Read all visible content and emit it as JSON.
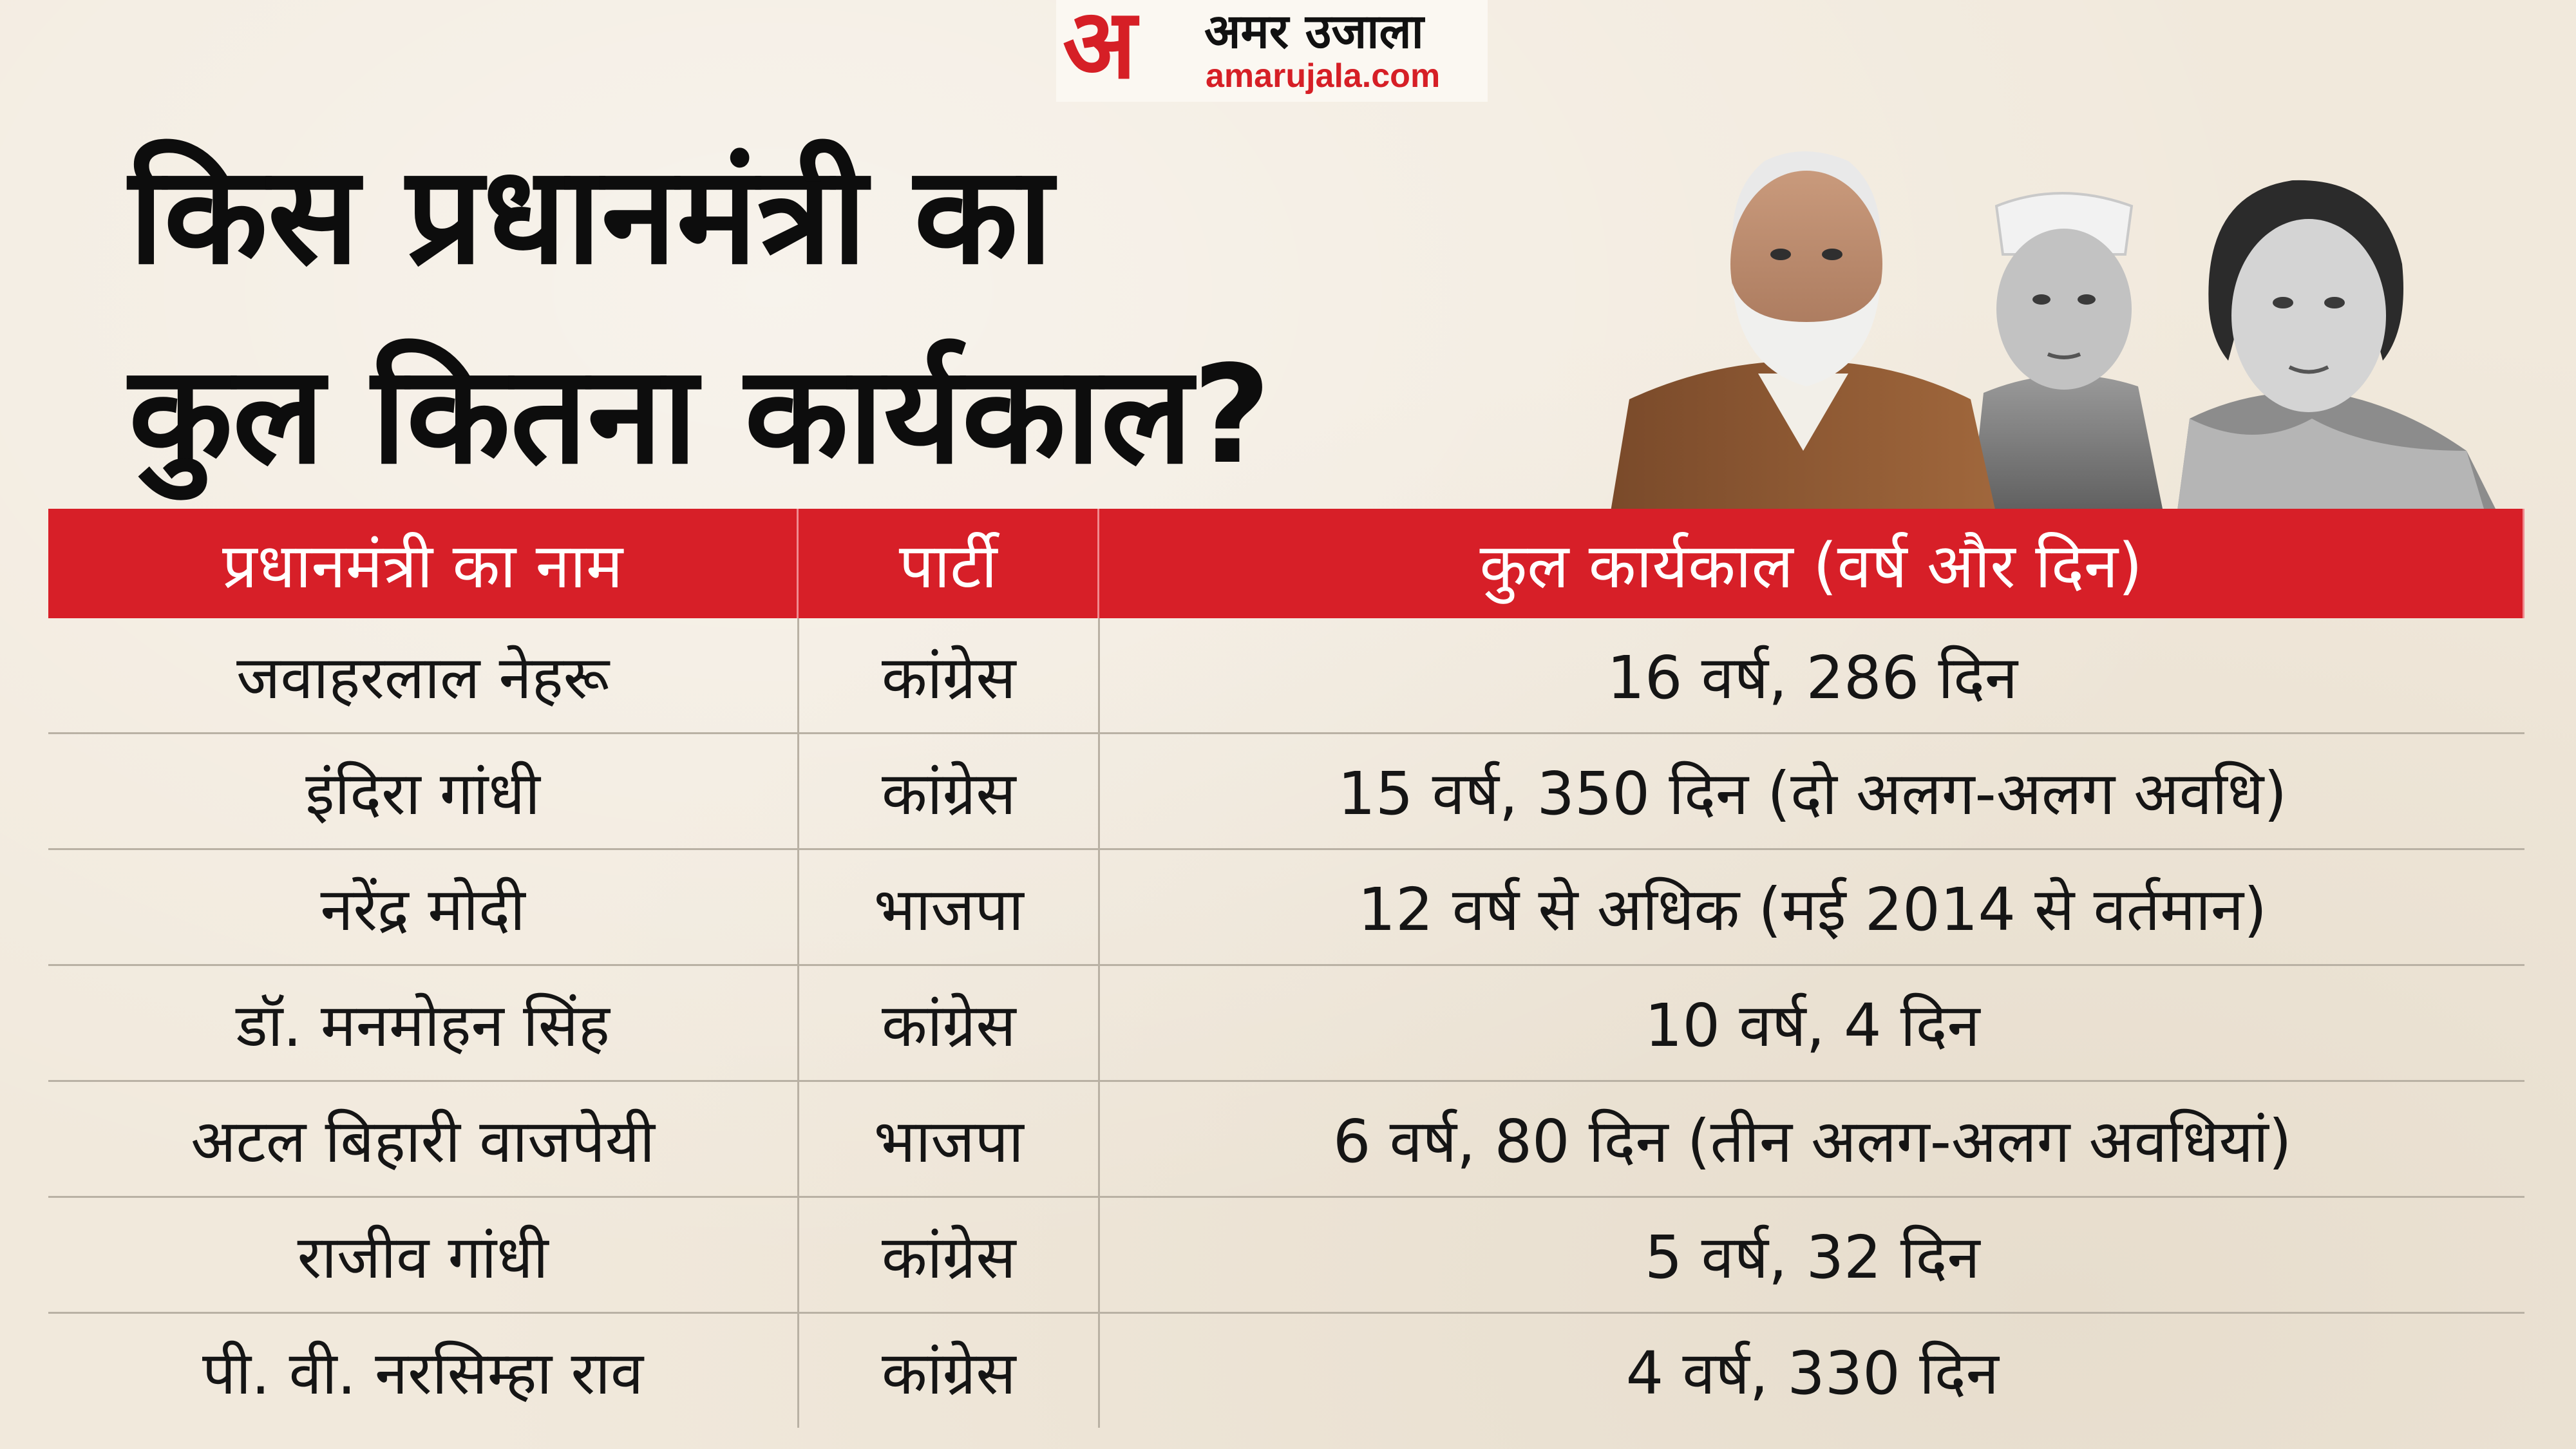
{
  "logo": {
    "mark": "अ",
    "name_hindi": "अमर उजाला",
    "site": "amarujala.com",
    "brand_color": "#d61f26"
  },
  "title": {
    "line1": "किस प्रधानमंत्री का",
    "line2": "कुल कितना कार्यकाल?"
  },
  "table": {
    "header_color": "#d71f28",
    "headers": [
      "प्रधानमंत्री का नाम",
      "पार्टी",
      "कुल कार्यकाल (वर्ष और दिन)"
    ],
    "rows": [
      {
        "name": "जवाहरलाल नेहरू",
        "party": "कांग्रेस",
        "tenure": "16 वर्ष, 286 दिन"
      },
      {
        "name": "इंदिरा गांधी",
        "party": "कांग्रेस",
        "tenure": "15 वर्ष, 350 दिन (दो अलग-अलग अवधि)"
      },
      {
        "name": "नरेंद्र मोदी",
        "party": "भाजपा",
        "tenure": "12 वर्ष से अधिक (मई 2014 से वर्तमान)"
      },
      {
        "name": "डॉ. मनमोहन सिंह",
        "party": "कांग्रेस",
        "tenure": "10 वर्ष, 4 दिन"
      },
      {
        "name": "अटल बिहारी वाजपेयी",
        "party": "भाजपा",
        "tenure": "6 वर्ष, 80 दिन (तीन अलग-अलग अवधियां)"
      },
      {
        "name": "राजीव गांधी",
        "party": "कांग्रेस",
        "tenure": "5 वर्ष, 32 दिन"
      },
      {
        "name": "पी. वी. नरसिम्हा राव",
        "party": "कांग्रेस",
        "tenure": "4 वर्ष, 330 दिन"
      }
    ]
  }
}
